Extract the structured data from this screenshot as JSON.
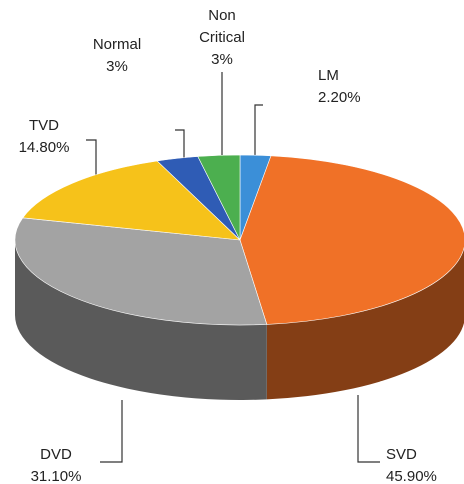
{
  "chart_data": {
    "type": "pie3d",
    "categories": [
      "LM",
      "SVD",
      "DVD",
      "TVD",
      "Normal",
      "Non Critical"
    ],
    "values": [
      2.2,
      45.9,
      31.1,
      14.8,
      3,
      3
    ],
    "value_labels": [
      "2.20%",
      "45.90%",
      "31.10%",
      "14.80%",
      "3%",
      "3%"
    ],
    "colors": [
      "#3b8fd8",
      "#f07127",
      "#a3a3a3",
      "#f6c21a",
      "#2f5cb5",
      "#4caf4f"
    ]
  }
}
